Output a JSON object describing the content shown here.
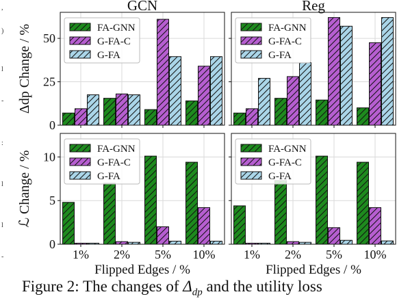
{
  "figure": {
    "colors": {
      "FA-GNN": "#1e8a1e",
      "G-FA-C": "#b65ed0",
      "G-FA": "#aad5e8",
      "grid": "#d9d9d9",
      "text": "#111111"
    },
    "hatch": "diagonal",
    "legend_position": "upper-left",
    "grid": true
  },
  "chart_data": [
    {
      "type": "bar",
      "title": "GCN",
      "ylabel": "Δdp Change / %",
      "ylim": [
        0,
        65
      ],
      "yticks": [
        0,
        25,
        50
      ],
      "categories": [
        "1%",
        "2%",
        "5%",
        "10%"
      ],
      "series": [
        {
          "name": "FA-GNN",
          "values": [
            7,
            15.5,
            9,
            14
          ]
        },
        {
          "name": "G-FA-C",
          "values": [
            9.5,
            18,
            61,
            34
          ]
        },
        {
          "name": "G-FA",
          "values": [
            17.5,
            17.5,
            39.5,
            39.5
          ]
        }
      ]
    },
    {
      "type": "bar",
      "title": "Reg",
      "ylabel": "",
      "ylim": [
        0,
        65
      ],
      "yticks": [
        0,
        25,
        50
      ],
      "categories": [
        "1%",
        "2%",
        "5%",
        "10%"
      ],
      "series": [
        {
          "name": "FA-GNN",
          "values": [
            7,
            15.5,
            14.5,
            10
          ]
        },
        {
          "name": "G-FA-C",
          "values": [
            9.5,
            28,
            62,
            47.5
          ]
        },
        {
          "name": "G-FA",
          "values": [
            27,
            36,
            57,
            62
          ]
        }
      ]
    },
    {
      "type": "bar",
      "title": "",
      "ylabel": "ℒ Change / %",
      "xlabel": "Flipped Edges / %",
      "ylim": [
        0,
        12.7
      ],
      "yticks": [
        0,
        5,
        10
      ],
      "categories": [
        "1%",
        "2%",
        "5%",
        "10%"
      ],
      "series": [
        {
          "name": "FA-GNN",
          "values": [
            4.8,
            7.0,
            10.1,
            9.4
          ]
        },
        {
          "name": "G-FA-C",
          "values": [
            0.12,
            0.3,
            2.0,
            4.2
          ]
        },
        {
          "name": "G-FA",
          "values": [
            0.12,
            0.22,
            0.35,
            0.35
          ]
        }
      ]
    },
    {
      "type": "bar",
      "title": "",
      "ylabel": "",
      "xlabel": "Flipped Edges / %",
      "ylim": [
        0,
        12.7
      ],
      "yticks": [
        0,
        5,
        10
      ],
      "categories": [
        "1%",
        "2%",
        "5%",
        "10%"
      ],
      "series": [
        {
          "name": "FA-GNN",
          "values": [
            4.4,
            7.3,
            10.1,
            9.4
          ]
        },
        {
          "name": "G-FA-C",
          "values": [
            0.12,
            0.3,
            1.9,
            4.2
          ]
        },
        {
          "name": "G-FA",
          "values": [
            0.12,
            0.22,
            0.45,
            0.38
          ]
        }
      ]
    }
  ],
  "caption": {
    "prefix": "Figure 2: The changes of ",
    "math_symbol": "Δ",
    "math_sub": "dp",
    "suffix": " and the utility loss"
  }
}
